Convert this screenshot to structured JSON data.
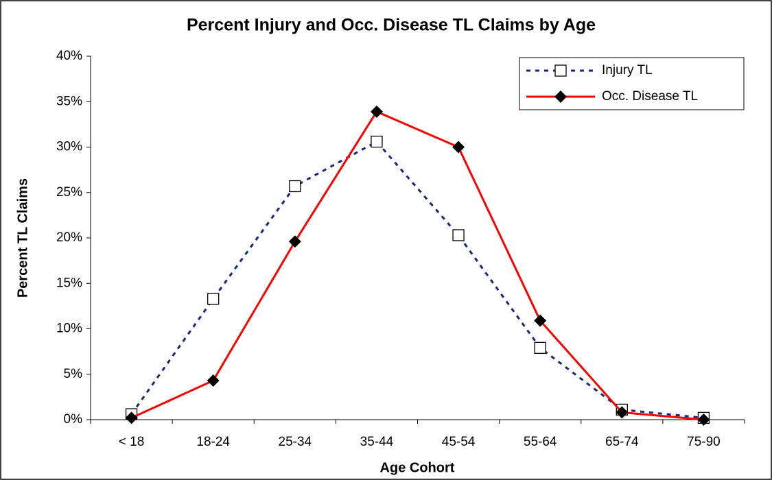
{
  "chart_data": {
    "type": "line",
    "title": "Percent Injury and Occ. Disease TL Claims by Age",
    "xlabel": "Age Cohort",
    "ylabel": "Percent TL Claims",
    "categories": [
      "< 18",
      "18-24",
      "25-34",
      "35-44",
      "45-54",
      "55-64",
      "65-74",
      "75-90"
    ],
    "series": [
      {
        "name": "Injury TL",
        "color": "#1a237e",
        "dash": "dotted",
        "marker": "square",
        "values": [
          0.6,
          13.3,
          25.7,
          30.6,
          20.3,
          7.9,
          1.1,
          0.2
        ]
      },
      {
        "name": "Occ. Disease TL",
        "color": "#ff0000",
        "dash": "solid",
        "marker": "diamond",
        "values": [
          0.2,
          4.3,
          19.6,
          33.9,
          30.0,
          10.9,
          0.8,
          0.0
        ]
      }
    ],
    "ylim": [
      0,
      40
    ],
    "yticks": [
      {
        "value": 0,
        "label": "0%"
      },
      {
        "value": 5,
        "label": "5%"
      },
      {
        "value": 10,
        "label": "10%"
      },
      {
        "value": 15,
        "label": "15%"
      },
      {
        "value": 20,
        "label": "20%"
      },
      {
        "value": 25,
        "label": "25%"
      },
      {
        "value": 30,
        "label": "30%"
      },
      {
        "value": 35,
        "label": "35%"
      },
      {
        "value": 40,
        "label": "40%"
      }
    ],
    "grid": false,
    "legend": "upper right"
  }
}
